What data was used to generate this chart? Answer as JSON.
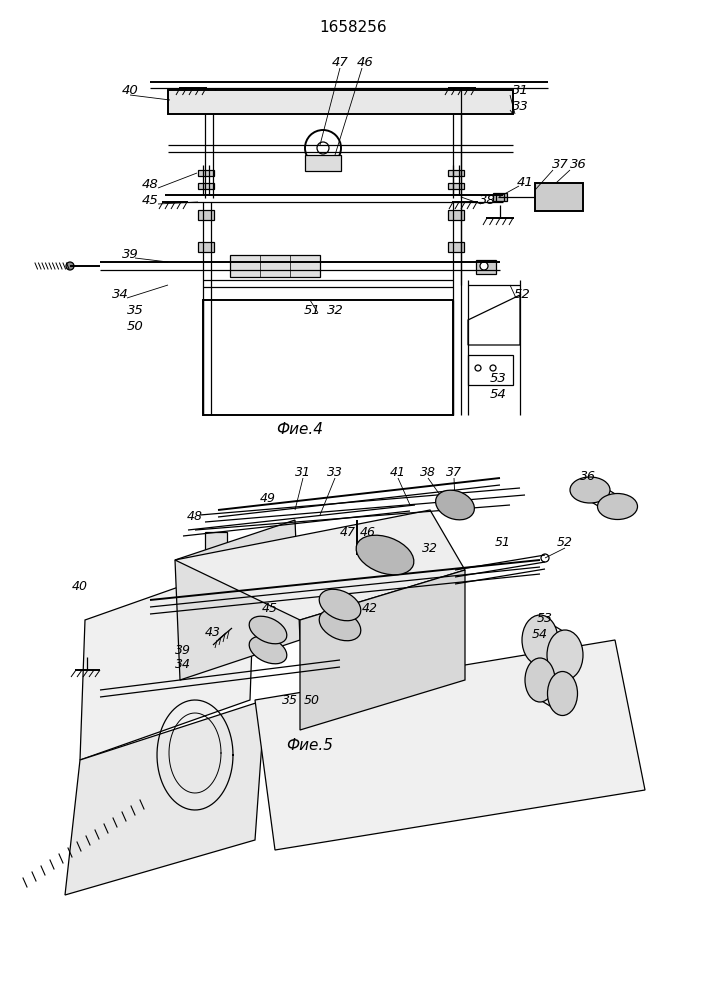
{
  "title": "1658256",
  "fig4_label": "Фие.4",
  "fig5_label": "Фие.5",
  "bg_color": "#ffffff"
}
